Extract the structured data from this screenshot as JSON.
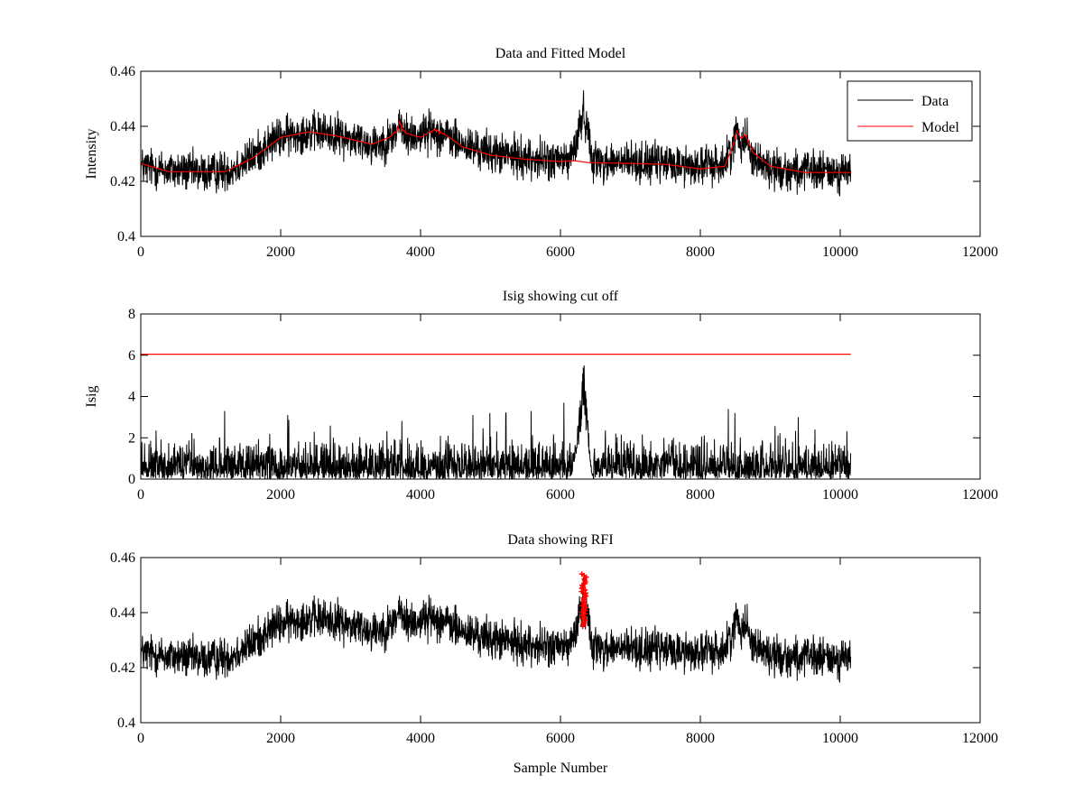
{
  "chart_data": [
    {
      "type": "line",
      "title": "Data and Fitted Model",
      "xlabel": "",
      "ylabel": "Intensity",
      "xlim": [
        0,
        12000
      ],
      "ylim": [
        0.4,
        0.46
      ],
      "xticks": [
        "0",
        "2000",
        "4000",
        "6000",
        "8000",
        "10000",
        "12000"
      ],
      "yticks": [
        "0.4",
        "0.42",
        "0.44",
        "0.46"
      ],
      "legend_position": "top-right",
      "series": [
        {
          "name": "Data",
          "color": "#000000",
          "kind": "noisy",
          "x_range": [
            0,
            10150
          ],
          "noise_amplitude": 0.0085,
          "baseline": [
            [
              0,
              0.4255
            ],
            [
              400,
              0.424
            ],
            [
              1000,
              0.423
            ],
            [
              1300,
              0.4245
            ],
            [
              1600,
              0.429
            ],
            [
              1900,
              0.435
            ],
            [
              2300,
              0.438
            ],
            [
              2700,
              0.4375
            ],
            [
              3100,
              0.435
            ],
            [
              3300,
              0.4335
            ],
            [
              3550,
              0.435
            ],
            [
              3650,
              0.438
            ],
            [
              3700,
              0.4415
            ],
            [
              3760,
              0.437
            ],
            [
              3900,
              0.4365
            ],
            [
              4150,
              0.4385
            ],
            [
              4300,
              0.4375
            ],
            [
              4600,
              0.433
            ],
            [
              5000,
              0.4305
            ],
            [
              5500,
              0.4285
            ],
            [
              5900,
              0.4275
            ],
            [
              6100,
              0.4275
            ],
            [
              6200,
              0.431
            ],
            [
              6300,
              0.443
            ],
            [
              6340,
              0.4445
            ],
            [
              6400,
              0.437
            ],
            [
              6460,
              0.4285
            ],
            [
              6600,
              0.427
            ],
            [
              7000,
              0.427
            ],
            [
              7500,
              0.4265
            ],
            [
              8000,
              0.4255
            ],
            [
              8350,
              0.4265
            ],
            [
              8450,
              0.4325
            ],
            [
              8520,
              0.438
            ],
            [
              8580,
              0.4345
            ],
            [
              8640,
              0.437
            ],
            [
              8750,
              0.429
            ],
            [
              9000,
              0.4245
            ],
            [
              9500,
              0.4235
            ],
            [
              10150,
              0.4235
            ]
          ]
        },
        {
          "name": "Model",
          "color": "#ff0000",
          "kind": "smooth",
          "x_range": [
            0,
            10150
          ],
          "baseline": [
            [
              0,
              0.4265
            ],
            [
              400,
              0.4235
            ],
            [
              1200,
              0.4235
            ],
            [
              1600,
              0.4285
            ],
            [
              2000,
              0.436
            ],
            [
              2400,
              0.438
            ],
            [
              2800,
              0.4365
            ],
            [
              3300,
              0.4335
            ],
            [
              3550,
              0.436
            ],
            [
              3660,
              0.438
            ],
            [
              3700,
              0.4415
            ],
            [
              3740,
              0.4385
            ],
            [
              3850,
              0.437
            ],
            [
              4000,
              0.436
            ],
            [
              4200,
              0.4385
            ],
            [
              4350,
              0.437
            ],
            [
              4600,
              0.4325
            ],
            [
              5000,
              0.4295
            ],
            [
              5500,
              0.428
            ],
            [
              6000,
              0.4272
            ],
            [
              6200,
              0.4275
            ],
            [
              6400,
              0.4268
            ],
            [
              7000,
              0.4265
            ],
            [
              7500,
              0.4262
            ],
            [
              8000,
              0.4245
            ],
            [
              8350,
              0.4255
            ],
            [
              8470,
              0.4335
            ],
            [
              8520,
              0.4385
            ],
            [
              8580,
              0.4355
            ],
            [
              8640,
              0.437
            ],
            [
              8750,
              0.4305
            ],
            [
              9000,
              0.4255
            ],
            [
              9500,
              0.4232
            ],
            [
              10150,
              0.4232
            ]
          ]
        }
      ]
    },
    {
      "type": "line",
      "title": "Isig showing cut off",
      "xlabel": "",
      "ylabel": "Isig",
      "xlim": [
        0,
        12000
      ],
      "ylim": [
        0,
        8
      ],
      "xticks": [
        "0",
        "2000",
        "4000",
        "6000",
        "8000",
        "10000",
        "12000"
      ],
      "yticks": [
        "0",
        "2",
        "4",
        "6",
        "8"
      ],
      "series": [
        {
          "color": "#000000",
          "kind": "noisy-abs",
          "x_range": [
            0,
            10150
          ],
          "typical_max": 2.0,
          "peak_points": [
            [
              6200,
              1.5
            ],
            [
              6260,
              3.0
            ],
            [
              6300,
              4.6
            ],
            [
              6330,
              6.1
            ],
            [
              6360,
              4.4
            ],
            [
              6400,
              2.6
            ],
            [
              6450,
              0.3
            ]
          ],
          "spikes": [
            [
              1200,
              3.3
            ],
            [
              2100,
              3.1
            ],
            [
              4750,
              3.1
            ],
            [
              4990,
              3.2
            ],
            [
              5220,
              3.2
            ],
            [
              5580,
              3.3
            ],
            [
              6050,
              3.7
            ],
            [
              8400,
              3.4
            ],
            [
              9400,
              3.0
            ]
          ]
        },
        {
          "name": "cut off",
          "color": "#ff0000",
          "kind": "constant",
          "x_range": [
            0,
            10150
          ],
          "value": 6.05
        }
      ]
    },
    {
      "type": "line",
      "title": "Data showing RFI",
      "xlabel": "Sample Number",
      "ylabel": "",
      "xlim": [
        0,
        12000
      ],
      "ylim": [
        0.4,
        0.46
      ],
      "xticks": [
        "0",
        "2000",
        "4000",
        "6000",
        "8000",
        "10000",
        "12000"
      ],
      "yticks": [
        "0.4",
        "0.42",
        "0.44",
        "0.46"
      ],
      "series": [
        {
          "color": "#000000",
          "kind": "noisy",
          "x_range": [
            0,
            10150
          ],
          "noise_amplitude": 0.0085,
          "same_as": "Data"
        },
        {
          "name": "RFI",
          "color": "#ff0000",
          "kind": "markers",
          "x_range": [
            6300,
            6370
          ],
          "y_range": [
            0.435,
            0.454
          ]
        }
      ]
    }
  ]
}
